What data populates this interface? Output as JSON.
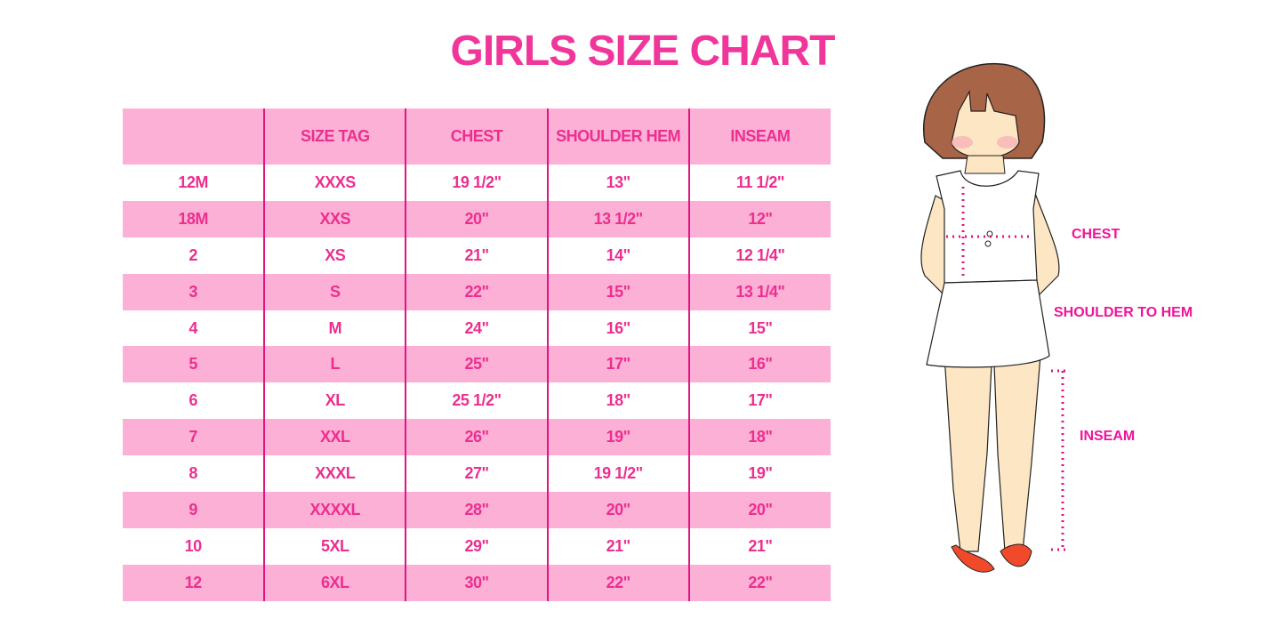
{
  "title": "GIRLS SIZE CHART",
  "table": {
    "headers": [
      "",
      "SIZE TAG",
      "CHEST",
      "SHOULDER HEM",
      "INSEAM"
    ],
    "rows": [
      [
        "12M",
        "XXXS",
        "19 1/2\"",
        "13\"",
        "11 1/2\""
      ],
      [
        "18M",
        "XXS",
        "20\"",
        "13 1/2\"",
        "12\""
      ],
      [
        "2",
        "XS",
        "21\"",
        "14\"",
        "12 1/4\""
      ],
      [
        "3",
        "S",
        "22\"",
        "15\"",
        "13 1/4\""
      ],
      [
        "4",
        "M",
        "24\"",
        "16\"",
        "15\""
      ],
      [
        "5",
        "L",
        "25\"",
        "17\"",
        "16\""
      ],
      [
        "6",
        "XL",
        "25 1/2\"",
        "18\"",
        "17\""
      ],
      [
        "7",
        "XXL",
        "26\"",
        "19\"",
        "18\""
      ],
      [
        "8",
        "XXXL",
        "27\"",
        "19 1/2\"",
        "19\""
      ],
      [
        "9",
        "XXXXL",
        "28\"",
        "20\"",
        "20\""
      ],
      [
        "10",
        "5XL",
        "29\"",
        "21\"",
        "21\""
      ],
      [
        "12",
        "6XL",
        "30\"",
        "22\"",
        "22\""
      ]
    ]
  },
  "figure": {
    "labels": {
      "chest": "CHEST",
      "shoulder_to_hem": "SHOULDER TO HEM",
      "inseam": "INSEAM"
    }
  },
  "colors": {
    "accent": "#f0369a",
    "row_pink": "#fcb0d6",
    "divider": "#e0157f"
  }
}
